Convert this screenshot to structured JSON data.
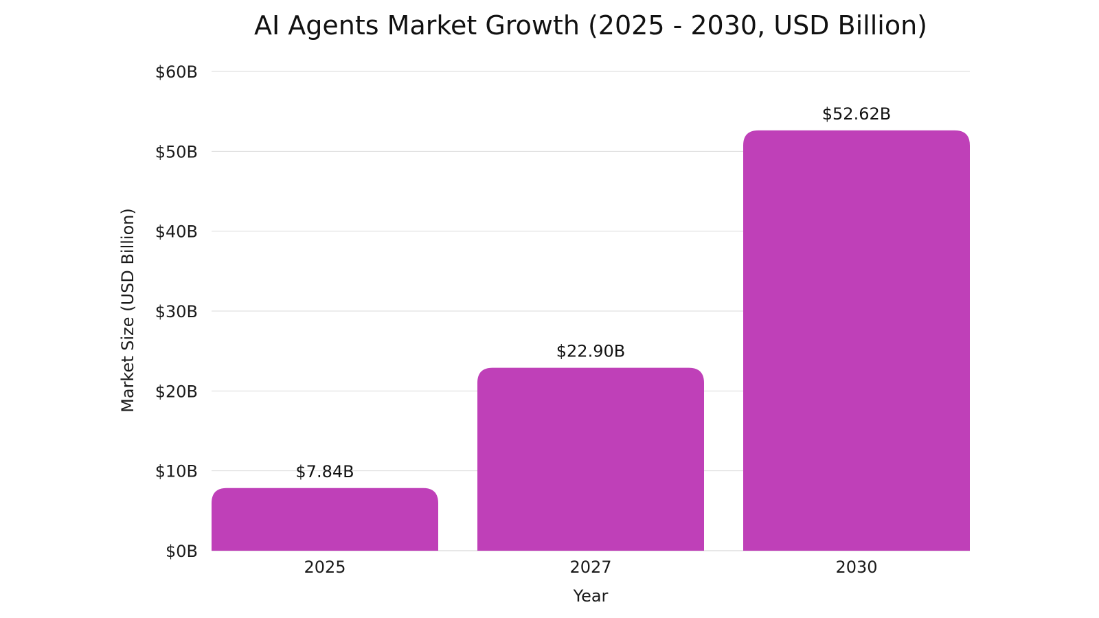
{
  "chart_data": {
    "type": "bar",
    "title": "AI Agents Market Growth (2025 - 2030, USD Billion)",
    "xlabel": "Year",
    "ylabel": "Market Size (USD Billion)",
    "categories": [
      "2025",
      "2027",
      "2030"
    ],
    "values": [
      7.84,
      22.9,
      52.62
    ],
    "data_labels": [
      "$7.84B",
      "$22.90B",
      "$52.62B"
    ],
    "ylim": [
      0,
      60
    ],
    "yticks": [
      0,
      10,
      20,
      30,
      40,
      50,
      60
    ],
    "ytick_labels": [
      "$0B",
      "$10B",
      "$20B",
      "$30B",
      "$40B",
      "$50B",
      "$60B"
    ],
    "grid": true,
    "bar_color": "#BF40B8"
  }
}
